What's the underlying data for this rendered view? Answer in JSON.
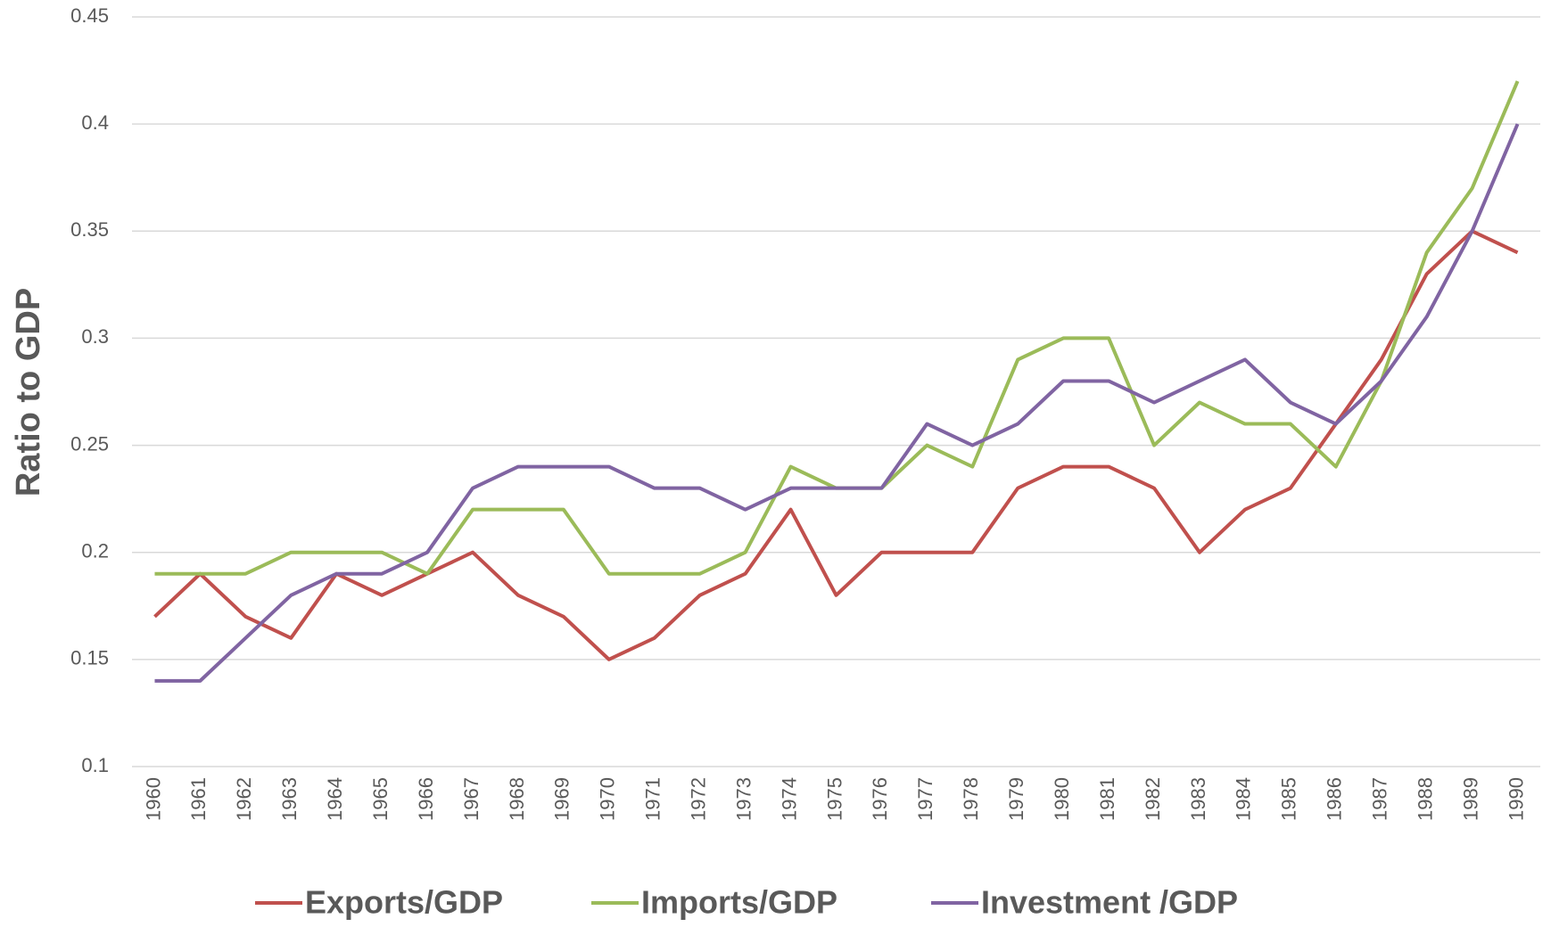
{
  "chart_data": {
    "type": "line",
    "y_label": "Ratio to GDP",
    "categories": [
      "1960",
      "1961",
      "1962",
      "1963",
      "1964",
      "1965",
      "1966",
      "1967",
      "1968",
      "1969",
      "1970",
      "1971",
      "1972",
      "1973",
      "1974",
      "1975",
      "1976",
      "1977",
      "1978",
      "1979",
      "1980",
      "1981",
      "1982",
      "1983",
      "1984",
      "1985",
      "1986",
      "1987",
      "1988",
      "1989",
      "1990"
    ],
    "series": [
      {
        "name": "Exports/GDP",
        "color": "#c0504d",
        "values": [
          0.17,
          0.19,
          0.17,
          0.16,
          0.19,
          0.18,
          0.19,
          0.2,
          0.18,
          0.17,
          0.15,
          0.16,
          0.18,
          0.19,
          0.22,
          0.18,
          0.2,
          0.2,
          0.2,
          0.23,
          0.24,
          0.24,
          0.23,
          0.2,
          0.22,
          0.23,
          0.26,
          0.29,
          0.33,
          0.35,
          0.34
        ]
      },
      {
        "name": "Imports/GDP",
        "color": "#9bbb59",
        "values": [
          0.19,
          0.19,
          0.19,
          0.2,
          0.2,
          0.2,
          0.19,
          0.22,
          0.22,
          0.22,
          0.19,
          0.19,
          0.19,
          0.2,
          0.24,
          0.23,
          0.23,
          0.25,
          0.24,
          0.29,
          0.3,
          0.3,
          0.25,
          0.27,
          0.26,
          0.26,
          0.24,
          0.28,
          0.34,
          0.37,
          0.42
        ]
      },
      {
        "name": "Investment /GDP",
        "color": "#8064a2",
        "values": [
          0.14,
          0.14,
          0.16,
          0.18,
          0.19,
          0.19,
          0.2,
          0.23,
          0.24,
          0.24,
          0.24,
          0.23,
          0.23,
          0.22,
          0.23,
          0.23,
          0.23,
          0.26,
          0.25,
          0.26,
          0.28,
          0.28,
          0.27,
          0.28,
          0.29,
          0.27,
          0.26,
          0.28,
          0.31,
          0.35,
          0.4
        ]
      }
    ],
    "ylim": [
      0.1,
      0.45
    ],
    "yticks": [
      0.1,
      0.15,
      0.2,
      0.25,
      0.3,
      0.35,
      0.4,
      0.45
    ],
    "grid": true,
    "legend": "bottom"
  }
}
